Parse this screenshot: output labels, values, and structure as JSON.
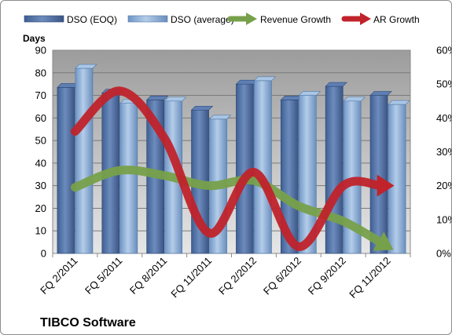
{
  "chart_data": {
    "type": "bar",
    "title": "",
    "company": "TIBCO Software",
    "ylabel": "Days",
    "ylim": [
      0,
      90
    ],
    "yticks": [
      "0",
      "10",
      "20",
      "30",
      "40",
      "50",
      "60",
      "70",
      "80",
      "90"
    ],
    "y2lim": [
      0,
      60
    ],
    "y2ticks": [
      "0%",
      "10%",
      "20%",
      "30%",
      "40%",
      "50%",
      "60%"
    ],
    "categories": [
      "FQ 2/2011",
      "FQ 5/2011",
      "FQ 8/2011",
      "FQ 11/2011",
      "FQ 2/2012",
      "FQ 6/2012",
      "FQ 9/2012",
      "FQ 11/2012"
    ],
    "series": [
      {
        "name": "DSO (EOQ)",
        "kind": "bar",
        "axis": "left",
        "color": "#4f6fa3",
        "values": [
          73.5,
          71,
          68,
          63.5,
          75,
          68,
          74,
          70
        ]
      },
      {
        "name": "DSO (average)",
        "kind": "bar",
        "axis": "left",
        "color": "#8db0d9",
        "values": [
          82,
          66.5,
          67.5,
          59.5,
          76.5,
          70,
          67.5,
          66
        ]
      },
      {
        "name": "Revenue Growth",
        "kind": "arrow-line",
        "axis": "right",
        "unit": "%",
        "color": "#77a04a",
        "values": [
          19.5,
          24.5,
          23,
          20,
          21.5,
          14,
          9.5,
          2
        ]
      },
      {
        "name": "AR Growth",
        "kind": "arrow-line",
        "axis": "right",
        "unit": "%",
        "color": "#c0232b",
        "values": [
          36,
          48,
          34,
          6,
          24,
          2,
          20,
          20
        ]
      }
    ],
    "grid": true,
    "legend": "top"
  }
}
